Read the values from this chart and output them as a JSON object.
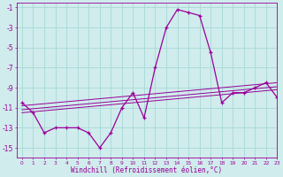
{
  "x": [
    0,
    1,
    2,
    3,
    4,
    5,
    6,
    7,
    8,
    9,
    10,
    11,
    12,
    13,
    14,
    15,
    16,
    17,
    18,
    19,
    20,
    21,
    22,
    23
  ],
  "windchill": [
    -10.5,
    -11.5,
    -13.5,
    -13.0,
    -13.0,
    -13.0,
    -13.5,
    -15.0,
    -13.5,
    -11.0,
    -9.5,
    -12.0,
    -7.0,
    -3.0,
    -1.2,
    -1.5,
    -1.8,
    -5.5,
    -10.5,
    -9.5,
    -9.5,
    -9.0,
    -8.5,
    -10.0
  ],
  "trend_line1": [
    -10.8,
    -10.7,
    -10.6,
    -10.5,
    -10.4,
    -10.3,
    -10.2,
    -10.1,
    -10.0,
    -9.9,
    -9.8,
    -9.7,
    -9.6,
    -9.5,
    -9.4,
    -9.3,
    -9.2,
    -9.1,
    -9.0,
    -8.9,
    -8.8,
    -8.7,
    -8.6,
    -8.5
  ],
  "trend_line2": [
    -11.2,
    -11.1,
    -11.0,
    -10.9,
    -10.8,
    -10.7,
    -10.6,
    -10.5,
    -10.4,
    -10.3,
    -10.2,
    -10.1,
    -10.0,
    -9.9,
    -9.8,
    -9.7,
    -9.6,
    -9.5,
    -9.4,
    -9.3,
    -9.2,
    -9.1,
    -9.0,
    -8.9
  ],
  "trend_line3": [
    -11.5,
    -11.4,
    -11.3,
    -11.2,
    -11.1,
    -11.0,
    -10.9,
    -10.8,
    -10.7,
    -10.6,
    -10.5,
    -10.4,
    -10.3,
    -10.2,
    -10.1,
    -10.0,
    -9.9,
    -9.8,
    -9.7,
    -9.6,
    -9.5,
    -9.4,
    -9.3,
    -9.2
  ],
  "line_color": "#990099",
  "background_color": "#d0ecec",
  "grid_color": "#a8d8d8",
  "xlabel": "Windchill (Refroidissement éolien,°C)",
  "yticks": [
    -1,
    -3,
    -5,
    -7,
    -9,
    -11,
    -13,
    -15
  ],
  "ylim": [
    -16.0,
    -0.5
  ],
  "xlim": [
    -0.5,
    23
  ]
}
